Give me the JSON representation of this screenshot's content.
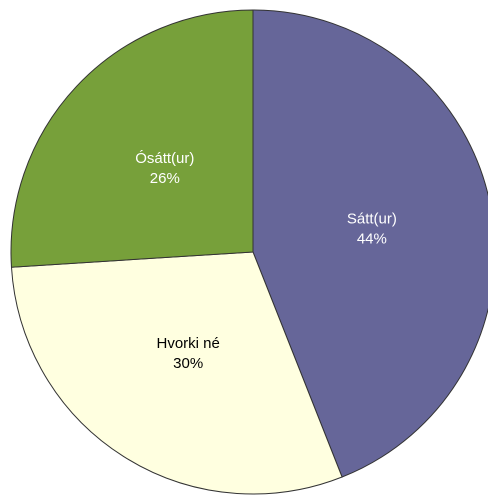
{
  "chart_data": {
    "type": "pie",
    "categories": [
      "Sátt(ur)",
      "Hvorki né",
      "Ósátt(ur)"
    ],
    "values": [
      44,
      30,
      26
    ],
    "value_labels": [
      "44%",
      "30%",
      "26%"
    ],
    "colors": [
      "#666699",
      "#ffffe0",
      "#77a03a"
    ],
    "label_colors": [
      "#ffffff",
      "#000000",
      "#ffffff"
    ]
  }
}
